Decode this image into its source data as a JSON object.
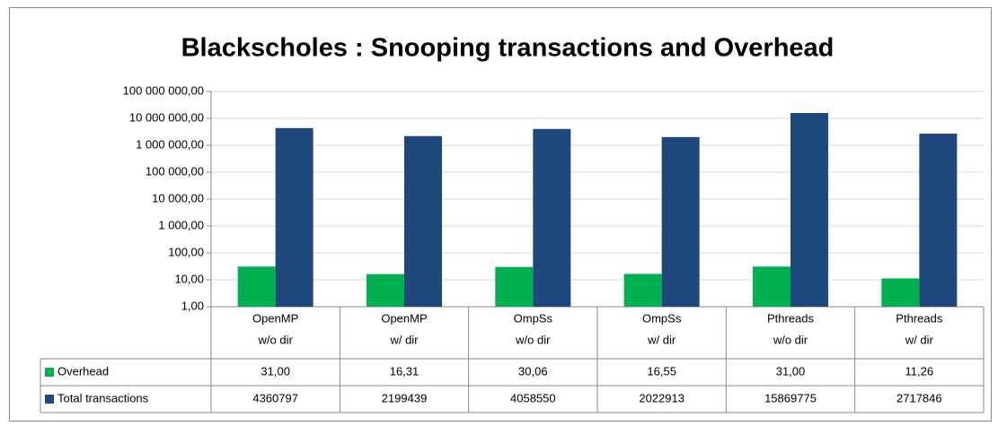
{
  "chart_data": {
    "type": "bar",
    "title": "Blackscholes : Snooping transactions and Overhead",
    "categories": [
      [
        "OpenMP",
        "w/o dir"
      ],
      [
        "OpenMP",
        "w/ dir"
      ],
      [
        "OmpSs",
        "w/o dir"
      ],
      [
        "OmpSs",
        "w/ dir"
      ],
      [
        "Pthreads",
        "w/o dir"
      ],
      [
        "Pthreads",
        "w/ dir"
      ]
    ],
    "series": [
      {
        "name": "Overhead",
        "color": "#00b050",
        "values": [
          31,
          16.31,
          30.06,
          16.55,
          31,
          11.26
        ],
        "value_labels": [
          "31,00",
          "16,31",
          "30,06",
          "16,55",
          "31,00",
          "11,26"
        ]
      },
      {
        "name": "Total transactions",
        "color": "#1f497d",
        "values": [
          4360797,
          2199439,
          4058550,
          2022913,
          15869775,
          2717846
        ]
      }
    ],
    "log_scale": true,
    "ylim": [
      1,
      100000000
    ],
    "yticks": [
      {
        "value": 1,
        "label": "1,00"
      },
      {
        "value": 10,
        "label": "10,00"
      },
      {
        "value": 100,
        "label": "100,00"
      },
      {
        "value": 1000,
        "label": "1 000,00"
      },
      {
        "value": 10000,
        "label": "10 000,00"
      },
      {
        "value": 100000,
        "label": "100 000,00"
      },
      {
        "value": 1000000,
        "label": "1 000 000,00"
      },
      {
        "value": 10000000,
        "label": "10 000 000,00"
      },
      {
        "value": 100000000,
        "label": "100 000 000,00"
      }
    ],
    "grid": true
  }
}
